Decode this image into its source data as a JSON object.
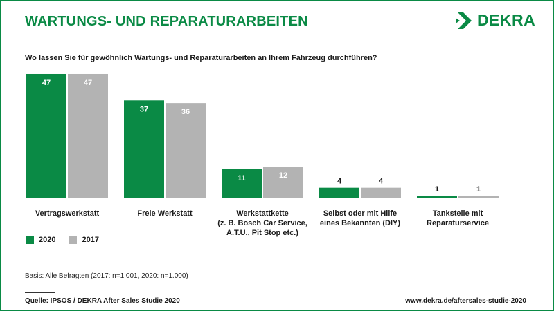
{
  "header": {
    "title": "WARTUNGS- UND REPARATURARBEITEN",
    "logo_text": "DEKRA",
    "question": "Wo lassen Sie für gewöhnlich Wartungs- und Reparaturarbeiten an Ihrem Fahrzeug durchführen?"
  },
  "colors": {
    "series_2020": "#0a8a45",
    "series_2017": "#b3b3b3",
    "brand": "#0a8a45"
  },
  "chart_data": {
    "type": "bar",
    "title": "",
    "xlabel": "",
    "ylabel": "",
    "ylim": [
      0,
      50
    ],
    "grid": false,
    "legend_position": "bottom-left",
    "categories": [
      "Vertragswerkstatt",
      "Freie Werkstatt",
      "Werkstattkette (z. B. Bosch Car Service, A.T.U., Pit Stop etc.)",
      "Selbst oder mit Hilfe eines Bekannten (DIY)",
      "Tankstelle mit Reparaturservice"
    ],
    "category_lines": [
      [
        "Vertragswerkstatt"
      ],
      [
        "Freie Werkstatt"
      ],
      [
        "Werkstattkette",
        "(z. B. Bosch Car Service,",
        "A.T.U., Pit Stop etc.)"
      ],
      [
        "Selbst oder mit Hilfe",
        "eines Bekannten (DIY)"
      ],
      [
        "Tankstelle mit",
        "Reparaturservice"
      ]
    ],
    "series": [
      {
        "name": "2020",
        "values": [
          47,
          37,
          11,
          4,
          1
        ]
      },
      {
        "name": "2017",
        "values": [
          47,
          36,
          12,
          4,
          1
        ]
      }
    ]
  },
  "legend": [
    {
      "label": "2020"
    },
    {
      "label": "2017"
    }
  ],
  "footer": {
    "basis": "Basis: Alle Befragten (2017: n=1.001, 2020: n=1.000)",
    "source": "Quelle: IPSOS / DEKRA After Sales Studie 2020",
    "url": "www.dekra.de/aftersales-studie-2020"
  }
}
